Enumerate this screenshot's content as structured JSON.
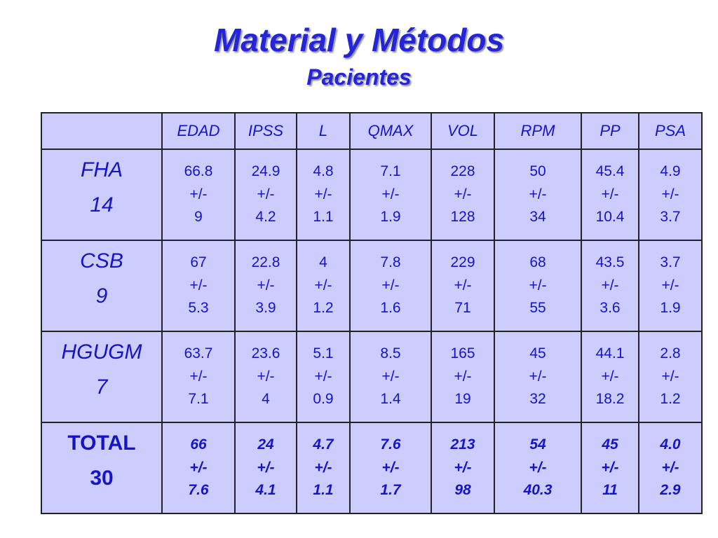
{
  "title": "Material y Métodos",
  "subtitle": "Pacientes",
  "table": {
    "headers": [
      "EDAD",
      "IPSS",
      "L",
      "QMAX",
      "VOL",
      "RPM",
      "PP",
      "PSA"
    ],
    "rows": [
      {
        "label": [
          "FHA",
          "14"
        ],
        "cells": [
          [
            "66.8",
            "+/-",
            "9"
          ],
          [
            "24.9",
            "+/-",
            "4.2"
          ],
          [
            "4.8",
            "+/-",
            "1.1"
          ],
          [
            "7.1",
            "+/-",
            "1.9"
          ],
          [
            "228",
            "+/-",
            "128"
          ],
          [
            "50",
            "+/-",
            "34"
          ],
          [
            "45.4",
            "+/-",
            "10.4"
          ],
          [
            "4.9",
            "+/-",
            "3.7"
          ]
        ]
      },
      {
        "label": [
          "CSB",
          "9"
        ],
        "cells": [
          [
            "67",
            "+/-",
            "5.3"
          ],
          [
            "22.8",
            "+/-",
            "3.9"
          ],
          [
            "4",
            "+/-",
            "1.2"
          ],
          [
            "7.8",
            "+/-",
            "1.6"
          ],
          [
            "229",
            "+/-",
            "71"
          ],
          [
            "68",
            "+/-",
            "55"
          ],
          [
            "43.5",
            "+/-",
            "3.6"
          ],
          [
            "3.7",
            "+/-",
            "1.9"
          ]
        ]
      },
      {
        "label": [
          "HGUGM",
          "7"
        ],
        "cells": [
          [
            "63.7",
            "+/-",
            "7.1"
          ],
          [
            "23.6",
            "+/-",
            "4"
          ],
          [
            "5.1",
            "+/-",
            "0.9"
          ],
          [
            "8.5",
            "+/-",
            "1.4"
          ],
          [
            "165",
            "+/-",
            "19"
          ],
          [
            "45",
            "+/-",
            "32"
          ],
          [
            "44.1",
            "+/-",
            "18.2"
          ],
          [
            "2.8",
            "+/-",
            "1.2"
          ]
        ]
      },
      {
        "label": [
          "TOTAL",
          "30"
        ],
        "cells": [
          [
            "66",
            "+/-",
            "7.6"
          ],
          [
            "24",
            "+/-",
            "4.1"
          ],
          [
            "4.7",
            "+/-",
            "1.1"
          ],
          [
            "7.6",
            "+/-",
            "1.7"
          ],
          [
            "213",
            "+/-",
            "98"
          ],
          [
            "54",
            "+/-",
            "40.3"
          ],
          [
            "45",
            "+/-",
            "11"
          ],
          [
            "4.0",
            "+/-",
            "2.9"
          ]
        ]
      }
    ]
  }
}
